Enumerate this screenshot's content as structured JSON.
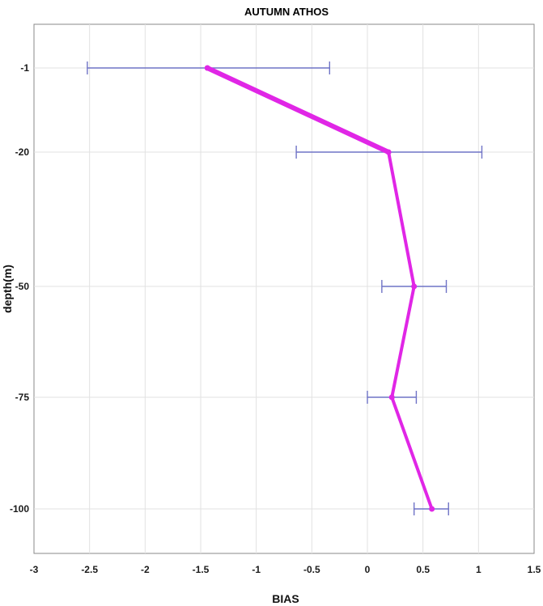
{
  "chart_data": {
    "type": "line",
    "title": "AUTUMN ATHOS",
    "xlabel": "BIAS",
    "ylabel": "depth(m)",
    "xlim": [
      -3,
      1.5
    ],
    "x_ticks": [
      "-3",
      "-2.5",
      "-2",
      "-1.5",
      "-1",
      "-0.5",
      "0",
      "0.5",
      "1",
      "1.5"
    ],
    "y_ticks": [
      "-1",
      "-20",
      "-50",
      "-75",
      "-100"
    ],
    "grid": true,
    "series": [
      {
        "points": [
          {
            "depth": -1,
            "bias": -1.44,
            "err_low": -2.52,
            "err_high": -0.34
          },
          {
            "depth": -20,
            "bias": 0.19,
            "err_low": -0.64,
            "err_high": 1.03
          },
          {
            "depth": -50,
            "bias": 0.42,
            "err_low": 0.13,
            "err_high": 0.71
          },
          {
            "depth": -75,
            "bias": 0.22,
            "err_low": 0.0,
            "err_high": 0.44
          },
          {
            "depth": -100,
            "bias": 0.58,
            "err_low": 0.42,
            "err_high": 0.73
          }
        ]
      }
    ],
    "colors": {
      "line": "#e026e6",
      "errorbar": "#6f73c6",
      "grid": "#e2e2e2"
    }
  }
}
